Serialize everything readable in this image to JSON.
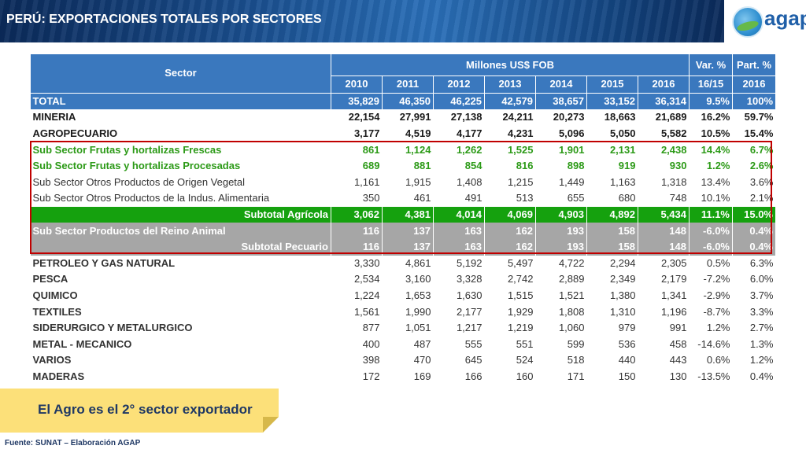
{
  "header": {
    "title": "PERÚ: EXPORTACIONES TOTALES POR SECTORES",
    "logo_text": "agap"
  },
  "table": {
    "col_sector": "Sector",
    "col_group": "Millones US$ FOB",
    "years": [
      "2010",
      "2011",
      "2012",
      "2013",
      "2014",
      "2015",
      "2016"
    ],
    "col_var_line1": "Var. %",
    "col_var_line2": "16/15",
    "col_part_line1": "Part. %",
    "col_part_line2": "2016",
    "rows": [
      {
        "label": "TOTAL",
        "values": [
          "35,829",
          "46,350",
          "46,225",
          "42,579",
          "38,657",
          "33,152",
          "36,314"
        ],
        "var": "9.5%",
        "part": "100%"
      },
      {
        "label": "MINERIA",
        "values": [
          "22,154",
          "27,991",
          "27,138",
          "24,211",
          "20,273",
          "18,663",
          "21,689"
        ],
        "var": "16.2%",
        "part": "59.7%"
      },
      {
        "label": "AGROPECUARIO",
        "values": [
          "3,177",
          "4,519",
          "4,177",
          "4,231",
          "5,096",
          "5,050",
          "5,582"
        ],
        "var": "10.5%",
        "part": "15.4%"
      },
      {
        "label": "Sub Sector Frutas y hortalizas Frescas",
        "values": [
          "861",
          "1,124",
          "1,262",
          "1,525",
          "1,901",
          "2,131",
          "2,438"
        ],
        "var": "14.4%",
        "part": "6.7%"
      },
      {
        "label": "Sub Sector Frutas y hortalizas Procesadas",
        "values": [
          "689",
          "881",
          "854",
          "816",
          "898",
          "919",
          "930"
        ],
        "var": "1.2%",
        "part": "2.6%"
      },
      {
        "label": "Sub Sector Otros Productos de Origen Vegetal",
        "values": [
          "1,161",
          "1,915",
          "1,408",
          "1,215",
          "1,449",
          "1,163",
          "1,318"
        ],
        "var": "13.4%",
        "part": "3.6%"
      },
      {
        "label": "Sub Sector Otros Productos de la Indus. Alimentaria",
        "values": [
          "350",
          "461",
          "491",
          "513",
          "655",
          "680",
          "748"
        ],
        "var": "10.1%",
        "part": "2.1%"
      },
      {
        "label": "Subtotal Agrícola",
        "values": [
          "3,062",
          "4,381",
          "4,014",
          "4,069",
          "4,903",
          "4,892",
          "5,434"
        ],
        "var": "11.1%",
        "part": "15.0%"
      },
      {
        "label": "Sub Sector  Productos del Reino Animal",
        "values": [
          "116",
          "137",
          "163",
          "162",
          "193",
          "158",
          "148"
        ],
        "var": "-6.0%",
        "part": "0.4%"
      },
      {
        "label": "Subtotal Pecuario",
        "values": [
          "116",
          "137",
          "163",
          "162",
          "193",
          "158",
          "148"
        ],
        "var": "-6.0%",
        "part": "0.4%"
      },
      {
        "label": "PETROLEO Y GAS NATURAL",
        "values": [
          "3,330",
          "4,861",
          "5,192",
          "5,497",
          "4,722",
          "2,294",
          "2,305"
        ],
        "var": "0.5%",
        "part": "6.3%"
      },
      {
        "label": "PESCA",
        "values": [
          "2,534",
          "3,160",
          "3,328",
          "2,742",
          "2,889",
          "2,349",
          "2,179"
        ],
        "var": "-7.2%",
        "part": "6.0%"
      },
      {
        "label": "QUIMICO",
        "values": [
          "1,224",
          "1,653",
          "1,630",
          "1,515",
          "1,521",
          "1,380",
          "1,341"
        ],
        "var": "-2.9%",
        "part": "3.7%"
      },
      {
        "label": "TEXTILES",
        "values": [
          "1,561",
          "1,990",
          "2,177",
          "1,929",
          "1,808",
          "1,310",
          "1,196"
        ],
        "var": "-8.7%",
        "part": "3.3%"
      },
      {
        "label": "SIDERURGICO Y METALURGICO",
        "values": [
          "877",
          "1,051",
          "1,217",
          "1,219",
          "1,060",
          "979",
          "991"
        ],
        "var": "1.2%",
        "part": "2.7%"
      },
      {
        "label": "METAL - MECANICO",
        "values": [
          "400",
          "487",
          "555",
          "551",
          "599",
          "536",
          "458"
        ],
        "var": "-14.6%",
        "part": "1.3%"
      },
      {
        "label": "VARIOS",
        "values": [
          "398",
          "470",
          "645",
          "524",
          "518",
          "440",
          "443"
        ],
        "var": "0.6%",
        "part": "1.2%"
      },
      {
        "label": "MADERAS",
        "values": [
          "172",
          "169",
          "166",
          "160",
          "171",
          "150",
          "130"
        ],
        "var": "-13.5%",
        "part": "0.4%"
      }
    ]
  },
  "callout": {
    "text": "El Agro es el 2° sector exportador"
  },
  "footer": {
    "source": "Fuente: SUNAT – Elaboración AGAP"
  },
  "colors": {
    "header_blue": "#3a78be",
    "subtotal_green": "#15a10e",
    "pecuario_grey": "#a6a6a6",
    "highlight_red": "#c00000",
    "callout_yellow": "#fce079",
    "green_text": "#2c9a17"
  }
}
